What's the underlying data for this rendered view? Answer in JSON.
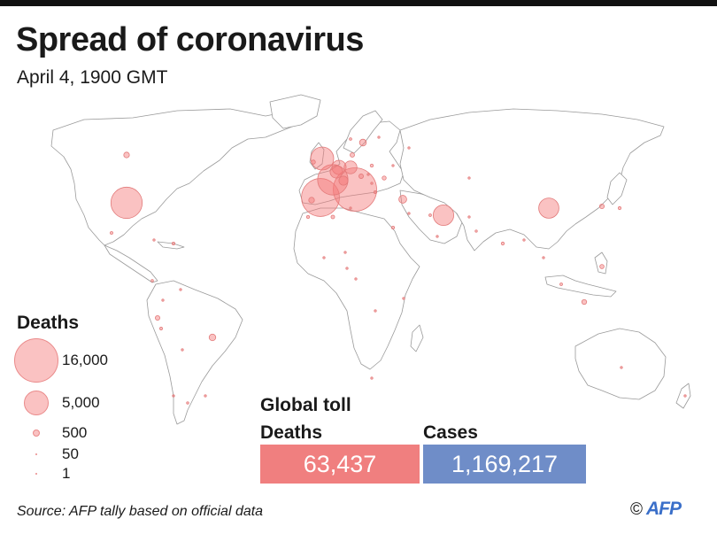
{
  "header": {
    "title": "Spread of coronavirus",
    "subtitle": "April 4, 1900 GMT"
  },
  "legend": {
    "title": "Deaths",
    "items": [
      {
        "label": "16,000",
        "value": 16000
      },
      {
        "label": "5,000",
        "value": 5000
      },
      {
        "label": "500",
        "value": 500
      },
      {
        "label": "50",
        "value": 50
      },
      {
        "label": "1",
        "value": 1
      }
    ]
  },
  "global_toll": {
    "title": "Global toll",
    "deaths_label": "Deaths",
    "deaths_value": "63,437",
    "cases_label": "Cases",
    "cases_value": "1,169,217"
  },
  "footer": {
    "source": "Source: AFP tally based on official data",
    "copyright_symbol": "©",
    "logo_text": "AFP"
  },
  "colors": {
    "bubble_fill": "#f37878",
    "deaths_box": "#f07f7f",
    "cases_box": "#6f8dc8",
    "land_stroke": "#9a9a9a"
  },
  "map": {
    "bubbles": [
      {
        "region": "Italy",
        "deaths": 15362
      },
      {
        "region": "Spain",
        "deaths": 11744
      },
      {
        "region": "United States",
        "deaths": 8000
      },
      {
        "region": "France",
        "deaths": 7560
      },
      {
        "region": "United Kingdom",
        "deaths": 4313
      },
      {
        "region": "Iran",
        "deaths": 3452
      },
      {
        "region": "China",
        "deaths": 3326
      },
      {
        "region": "Netherlands",
        "deaths": 1651
      },
      {
        "region": "Germany",
        "deaths": 1342
      },
      {
        "region": "Belgium",
        "deaths": 1283
      },
      {
        "region": "Switzerland",
        "deaths": 666
      },
      {
        "region": "Turkey",
        "deaths": 501
      },
      {
        "region": "Brazil",
        "deaths": 359
      },
      {
        "region": "Sweden",
        "deaths": 373
      },
      {
        "region": "Portugal",
        "deaths": 266
      },
      {
        "region": "Austria",
        "deaths": 168
      },
      {
        "region": "Indonesia",
        "deaths": 191
      },
      {
        "region": "Canada",
        "deaths": 259
      },
      {
        "region": "Ecuador",
        "deaths": 172
      },
      {
        "region": "Denmark",
        "deaths": 161
      },
      {
        "region": "Philippines",
        "deaths": 144
      },
      {
        "region": "India",
        "deaths": 75
      },
      {
        "region": "Algeria",
        "deaths": 105
      },
      {
        "region": "Mexico",
        "deaths": 60
      },
      {
        "region": "Japan",
        "deaths": 73
      },
      {
        "region": "South Korea",
        "deaths": 177
      },
      {
        "region": "Egypt",
        "deaths": 66
      },
      {
        "region": "Iraq",
        "deaths": 54
      },
      {
        "region": "Poland",
        "deaths": 79
      },
      {
        "region": "Romania",
        "deaths": 133
      },
      {
        "region": "Norway",
        "deaths": 50
      },
      {
        "region": "Peru",
        "deaths": 61
      },
      {
        "region": "Argentina",
        "deaths": 42
      },
      {
        "region": "Chile",
        "deaths": 27
      },
      {
        "region": "Colombia",
        "deaths": 25
      },
      {
        "region": "Australia",
        "deaths": 30
      },
      {
        "region": "Pakistan",
        "deaths": 40
      },
      {
        "region": "Malaysia",
        "deaths": 57
      },
      {
        "region": "South Africa",
        "deaths": 11
      },
      {
        "region": "Morocco",
        "deaths": 70
      },
      {
        "region": "Saudi Arabia",
        "deaths": 34
      },
      {
        "region": "Israel",
        "deaths": 31
      },
      {
        "region": "Thailand",
        "deaths": 20
      },
      {
        "region": "Dominican Republic",
        "deaths": 68
      },
      {
        "region": "Panama",
        "deaths": 46
      },
      {
        "region": "Russia",
        "deaths": 34
      },
      {
        "region": "Finland",
        "deaths": 25
      },
      {
        "region": "Greece",
        "deaths": 68
      },
      {
        "region": "Hungary",
        "deaths": 26
      },
      {
        "region": "Ireland",
        "deaths": 137
      },
      {
        "region": "Serbia",
        "deaths": 39
      },
      {
        "region": "Ukraine",
        "deaths": 32
      },
      {
        "region": "Bolivia",
        "deaths": 9
      },
      {
        "region": "Venezuela",
        "deaths": 7
      },
      {
        "region": "Cuba",
        "deaths": 8
      },
      {
        "region": "Tunisia",
        "deaths": 18
      },
      {
        "region": "Burkina Faso",
        "deaths": 16
      },
      {
        "region": "Cameroon",
        "deaths": 8
      },
      {
        "region": "Nigeria",
        "deaths": 6
      },
      {
        "region": "Kenya",
        "deaths": 4
      },
      {
        "region": "DR Congo",
        "deaths": 18
      },
      {
        "region": "Bangladesh",
        "deaths": 8
      },
      {
        "region": "New Zealand",
        "deaths": 1
      },
      {
        "region": "Uruguay",
        "deaths": 4
      },
      {
        "region": "Afghanistan",
        "deaths": 4
      },
      {
        "region": "Kazakhstan",
        "deaths": 2
      },
      {
        "region": "Niger",
        "deaths": 10
      }
    ]
  }
}
